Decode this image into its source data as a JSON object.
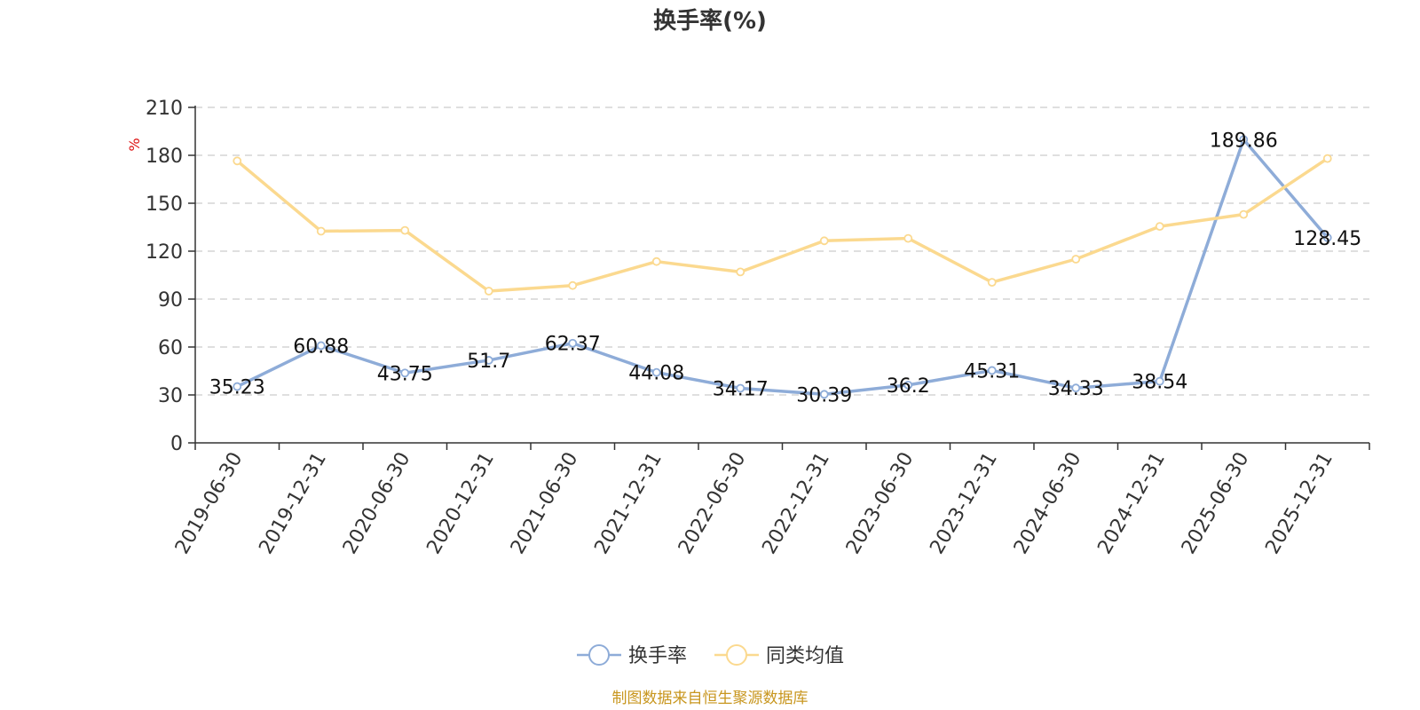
{
  "chart_data": {
    "type": "line",
    "title": "换手率(%)",
    "ylabel": "%",
    "ylim": [
      0,
      210
    ],
    "yticks": [
      0,
      30,
      60,
      90,
      120,
      150,
      180,
      210
    ],
    "grid": true,
    "categories": [
      "2019-06-30",
      "2019-12-31",
      "2020-06-30",
      "2020-12-31",
      "2021-06-30",
      "2021-12-31",
      "2022-06-30",
      "2022-12-31",
      "2023-06-30",
      "2023-12-31",
      "2024-06-30",
      "2024-12-31",
      "2025-06-30",
      "2025-12-31"
    ],
    "series": [
      {
        "name": "换手率",
        "color": "#8eacd8",
        "values": [
          35.23,
          60.88,
          43.75,
          51.7,
          62.37,
          44.08,
          34.17,
          30.39,
          36.2,
          45.31,
          34.33,
          38.54,
          189.86,
          128.45
        ],
        "labels": [
          "35.23",
          "60.88",
          "43.75",
          "51.7",
          "62.37",
          "44.08",
          "34.17",
          "30.39",
          "36.2",
          "45.31",
          "34.33",
          "38.54",
          "189.86",
          "128.45"
        ]
      },
      {
        "name": "同类均值",
        "color": "#fbd98f",
        "values": [
          176.5,
          132.5,
          133.0,
          95.0,
          98.5,
          113.5,
          107.0,
          126.5,
          128.0,
          100.5,
          115.0,
          135.5,
          143.0,
          178.0
        ]
      }
    ],
    "legend_position": "bottom-center"
  },
  "source_note": "制图数据来自恒生聚源数据库",
  "colors": {
    "unit_label": "#dd1111",
    "source_note": "#c8961e"
  }
}
